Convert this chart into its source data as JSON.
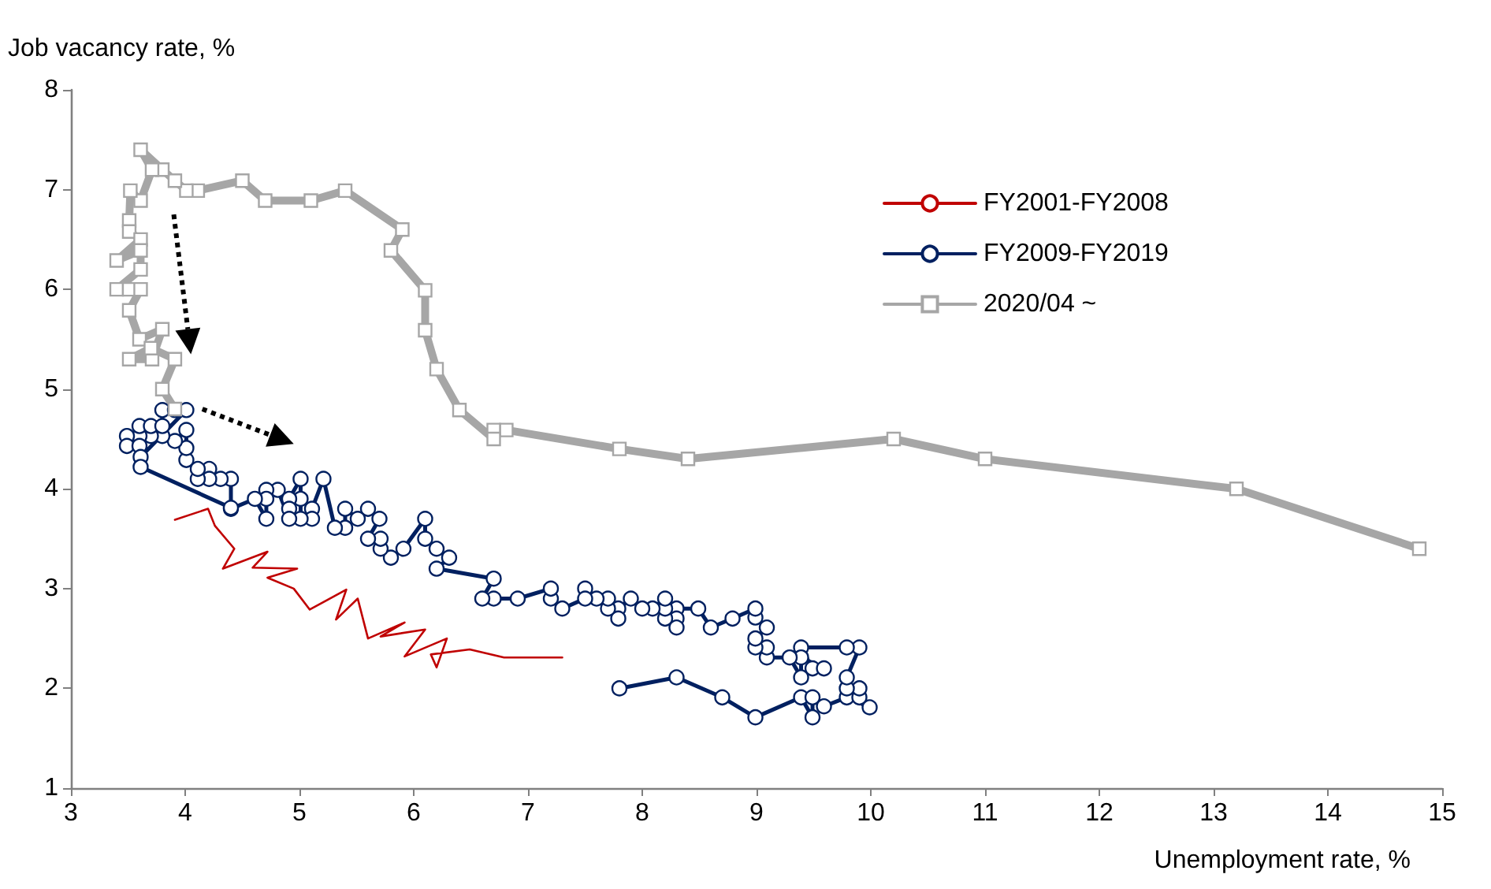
{
  "chart_data": {
    "type": "line",
    "xlabel": "Unemployment rate, %",
    "ylabel": "Job vacancy rate, %",
    "xlim": [
      3,
      15
    ],
    "xticks": [
      3,
      4,
      5,
      6,
      7,
      8,
      9,
      10,
      11,
      12,
      13,
      14,
      15
    ],
    "ylim": [
      1,
      8
    ],
    "yticks": [
      1,
      2,
      3,
      4,
      5,
      6,
      7,
      8
    ],
    "grid": false,
    "legend": "top right",
    "series": [
      {
        "name": "FY2001-FY2008",
        "color": "#c00000",
        "marker": "none",
        "x": [
          3.91,
          4.2,
          4.26,
          4.43,
          4.33,
          4.72,
          4.59,
          4.98,
          4.72,
          4.95,
          5.09,
          5.41,
          5.32,
          5.51,
          5.6,
          5.92,
          5.71,
          6.1,
          5.92,
          6.29,
          6.2,
          6.15,
          6.49,
          6.79,
          7.3
        ],
        "values": [
          3.69,
          3.8,
          3.63,
          3.4,
          3.2,
          3.37,
          3.21,
          3.2,
          3.11,
          3.0,
          2.79,
          2.99,
          2.69,
          2.9,
          2.5,
          2.66,
          2.52,
          2.59,
          2.32,
          2.5,
          2.21,
          2.34,
          2.39,
          2.31,
          2.31
        ]
      },
      {
        "name": "FY2009-FY2019",
        "color": "#002060",
        "marker": "circle",
        "x": [
          7.8,
          8.3,
          8.7,
          8.99,
          9.39,
          9.49,
          9.49,
          9.59,
          9.79,
          9.99,
          9.9,
          9.9,
          9.79,
          9.79,
          9.9,
          9.79,
          9.39,
          9.49,
          9.59,
          9.39,
          9.39,
          9.29,
          9.09,
          9.09,
          8.99,
          8.99,
          9.09,
          8.99,
          8.99,
          8.79,
          8.6,
          8.49,
          8.3,
          8.3,
          8.3,
          8.2,
          8.2,
          8.2,
          8.09,
          8.0,
          7.9,
          7.79,
          7.79,
          7.7,
          7.7,
          7.6,
          7.5,
          7.5,
          7.3,
          7.2,
          7.2,
          6.91,
          6.7,
          6.6,
          6.7,
          6.2,
          6.31,
          6.2,
          6.1,
          6.1,
          5.91,
          5.8,
          5.71,
          5.71,
          5.6,
          5.7,
          5.6,
          5.51,
          5.4,
          5.4,
          5.31,
          5.21,
          5.11,
          5.11,
          5.01,
          5.01,
          5.01,
          4.91,
          4.91,
          4.91,
          4.81,
          4.71,
          4.71,
          4.71,
          4.61,
          4.4,
          4.4,
          4.31,
          4.21,
          4.21,
          4.11,
          4.11,
          4.01,
          4.01,
          4.01,
          3.91,
          3.8,
          3.7,
          3.6,
          3.49,
          3.49,
          3.6,
          3.6,
          3.7,
          3.8,
          3.8,
          3.91,
          4.01,
          3.61,
          3.61,
          4.4
        ],
        "values": [
          2.0,
          2.11,
          1.91,
          1.71,
          1.91,
          1.71,
          1.91,
          1.82,
          1.91,
          1.81,
          1.91,
          2.0,
          2.0,
          2.11,
          2.41,
          2.41,
          2.41,
          2.2,
          2.2,
          2.31,
          2.11,
          2.31,
          2.31,
          2.41,
          2.41,
          2.5,
          2.61,
          2.71,
          2.8,
          2.7,
          2.61,
          2.8,
          2.8,
          2.7,
          2.61,
          2.7,
          2.8,
          2.9,
          2.8,
          2.8,
          2.9,
          2.8,
          2.7,
          2.8,
          2.9,
          2.9,
          3.0,
          2.9,
          2.8,
          2.9,
          3.0,
          2.9,
          2.9,
          2.9,
          3.1,
          3.2,
          3.31,
          3.4,
          3.5,
          3.7,
          3.4,
          3.31,
          3.4,
          3.5,
          3.5,
          3.7,
          3.8,
          3.7,
          3.8,
          3.61,
          3.61,
          4.1,
          3.8,
          3.7,
          3.7,
          3.9,
          4.1,
          3.9,
          3.8,
          3.7,
          3.99,
          3.99,
          3.9,
          3.7,
          3.9,
          3.8,
          4.1,
          4.1,
          4.2,
          4.1,
          4.1,
          4.2,
          4.29,
          4.41,
          4.59,
          4.48,
          4.53,
          4.53,
          4.53,
          4.53,
          4.43,
          4.43,
          4.63,
          4.63,
          4.63,
          4.79,
          4.79,
          4.79,
          4.32,
          4.22,
          3.81
        ]
      },
      {
        "name": "2020/04 ~",
        "color": "#a6a6a6",
        "marker": "square",
        "x": [
          14.8,
          13.2,
          11.0,
          10.2,
          8.4,
          7.8,
          6.81,
          6.7,
          6.7,
          6.4,
          6.2,
          6.1,
          6.1,
          5.8,
          5.9,
          5.4,
          5.1,
          4.7,
          4.5,
          4.11,
          4.01,
          3.91,
          3.8,
          3.61,
          3.71,
          3.61,
          3.52,
          3.51,
          3.51,
          3.61,
          3.4,
          3.61,
          3.61,
          3.4,
          3.51,
          3.61,
          3.51,
          3.6,
          3.8,
          3.71,
          3.51,
          3.7,
          3.91,
          3.8,
          3.91
        ],
        "values": [
          3.4,
          4.0,
          4.3,
          4.5,
          4.3,
          4.4,
          4.59,
          4.59,
          4.5,
          4.79,
          5.2,
          5.59,
          5.99,
          6.39,
          6.6,
          6.99,
          6.89,
          6.89,
          7.09,
          6.99,
          6.99,
          7.09,
          7.2,
          7.4,
          7.2,
          6.89,
          6.99,
          6.69,
          6.58,
          6.5,
          6.29,
          6.39,
          6.2,
          6.0,
          6.0,
          6.0,
          5.79,
          5.5,
          5.6,
          5.3,
          5.3,
          5.41,
          5.3,
          5.0,
          4.8
        ]
      }
    ]
  }
}
